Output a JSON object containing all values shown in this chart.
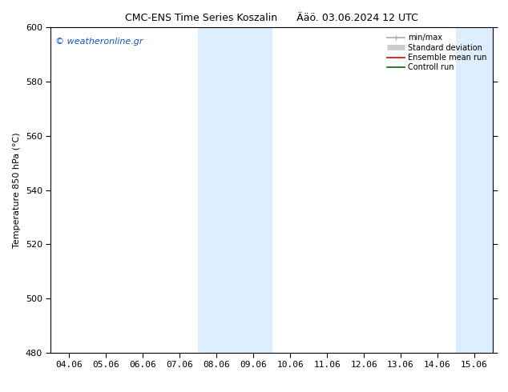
{
  "title": "CMC-ENS Time Series Koszalin      Ääö. 03.06.2024 12 UTC",
  "ylabel": "Temperature 850 hPa (°C)",
  "ylim": [
    480,
    600
  ],
  "yticks": [
    480,
    500,
    520,
    540,
    560,
    580,
    600
  ],
  "xlabels": [
    "04.06",
    "05.06",
    "06.06",
    "07.06",
    "08.06",
    "09.06",
    "10.06",
    "11.06",
    "12.06",
    "13.06",
    "14.06",
    "15.06"
  ],
  "xvalues": [
    0,
    1,
    2,
    3,
    4,
    5,
    6,
    7,
    8,
    9,
    10,
    11
  ],
  "shaded_bands": [
    {
      "xstart": 3.5,
      "xend": 5.5
    },
    {
      "xstart": 10.5,
      "xend": 11.5
    }
  ],
  "band_color": "#ddeeff",
  "watermark_text": "© weatheronline.gr",
  "watermark_color": "#1155cc",
  "legend_entries": [
    {
      "label": "min/max",
      "color": "#aaaaaa",
      "lw": 1.2
    },
    {
      "label": "Standard deviation",
      "color": "#cccccc",
      "lw": 5
    },
    {
      "label": "Ensemble mean run",
      "color": "#dd0000",
      "lw": 1.2
    },
    {
      "label": "Controll run",
      "color": "#006600",
      "lw": 1.2
    }
  ],
  "bg_color": "#ffffff",
  "title_fontsize": 9,
  "axis_fontsize": 8,
  "tick_fontsize": 8,
  "watermark_fontsize": 8,
  "legend_fontsize": 7
}
